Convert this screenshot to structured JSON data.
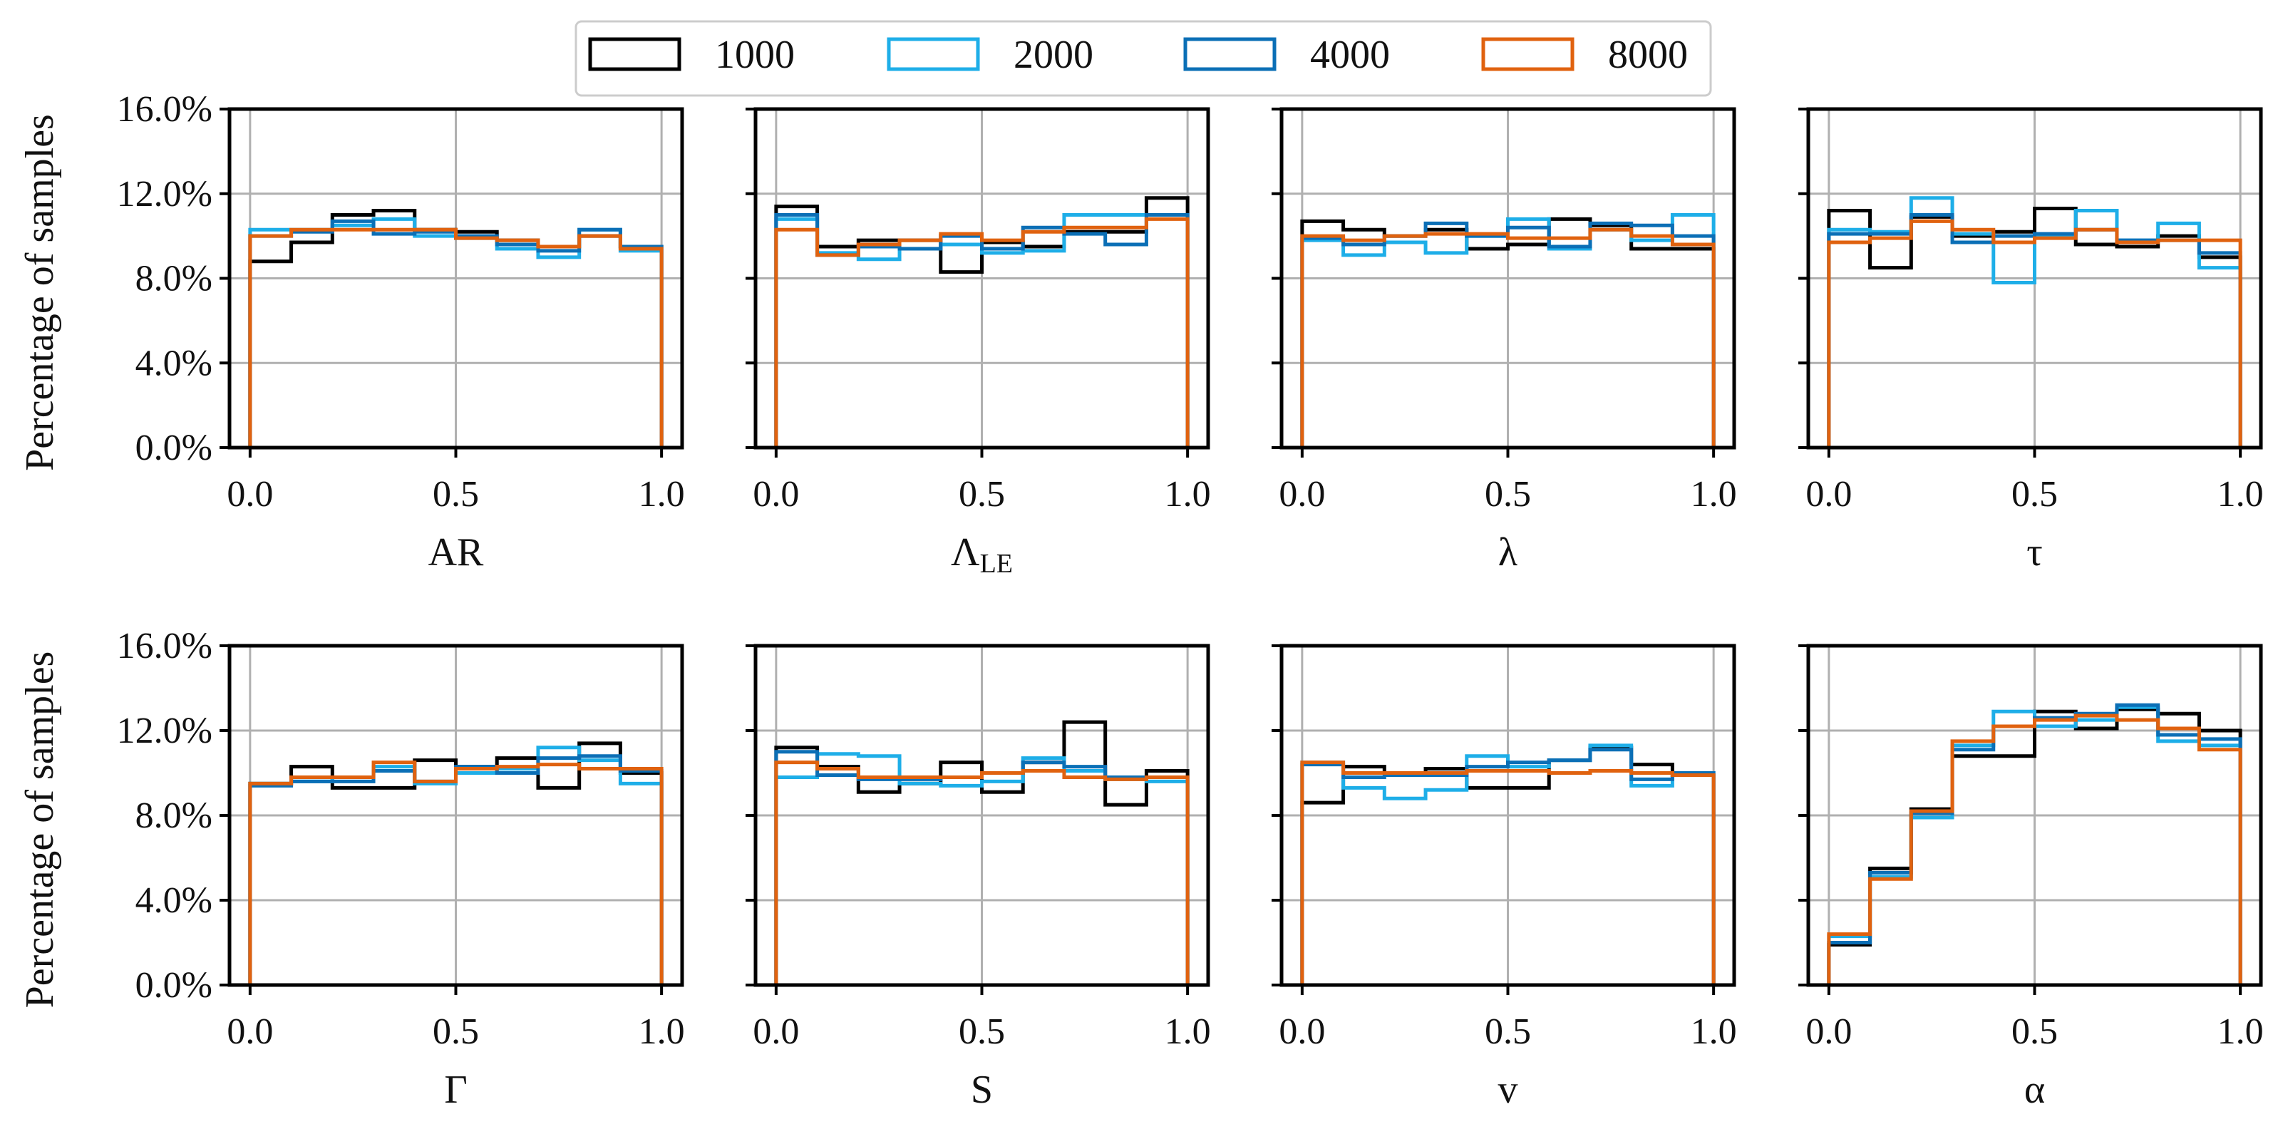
{
  "chart_data": {
    "type": "histogram",
    "legend": {
      "placement": "top-center",
      "entries": [
        {
          "label": "1000",
          "color": "#000000"
        },
        {
          "label": "2000",
          "color": "#1eaee8"
        },
        {
          "label": "4000",
          "color": "#0b6fb6"
        },
        {
          "label": "8000",
          "color": "#e0620f"
        }
      ]
    },
    "ylabel": "Percentage of samples",
    "y_ticks": [
      "0.0%",
      "4.0%",
      "8.0%",
      "12.0%",
      "16.0%"
    ],
    "x_ticks": [
      "0.0",
      "0.5",
      "1.0"
    ],
    "ylim": [
      0,
      16
    ],
    "xlim": [
      -0.05,
      1.05
    ],
    "bin_edges": [
      0.0,
      0.1,
      0.2,
      0.3,
      0.4,
      0.5,
      0.6,
      0.7,
      0.8,
      0.9,
      1.0
    ],
    "grid": true,
    "panels": [
      {
        "xlabel": "AR",
        "sub": "",
        "series": [
          [
            8.8,
            9.7,
            11.0,
            11.2,
            10.3,
            10.2,
            9.8,
            9.5,
            10.0,
            9.5
          ],
          [
            10.3,
            10.3,
            10.5,
            10.8,
            10.0,
            9.9,
            9.4,
            9.0,
            10.3,
            9.3
          ],
          [
            10.0,
            10.2,
            10.7,
            10.1,
            10.2,
            10.0,
            9.6,
            9.3,
            10.3,
            9.5
          ],
          [
            10.0,
            10.3,
            10.3,
            10.3,
            10.3,
            9.9,
            9.8,
            9.5,
            10.0,
            9.4
          ]
        ]
      },
      {
        "xlabel": "Λ",
        "sub": "LE",
        "series": [
          [
            11.4,
            9.5,
            9.8,
            9.8,
            8.3,
            9.7,
            9.5,
            10.2,
            10.2,
            11.8
          ],
          [
            10.8,
            9.2,
            8.9,
            9.4,
            9.6,
            9.2,
            9.3,
            11.0,
            11.0,
            11.0
          ],
          [
            11.0,
            9.1,
            9.5,
            9.4,
            10.0,
            9.4,
            10.4,
            10.1,
            9.6,
            11.0
          ],
          [
            10.3,
            9.1,
            9.6,
            9.8,
            10.1,
            9.8,
            10.2,
            10.4,
            10.4,
            10.8
          ]
        ]
      },
      {
        "xlabel": "λ",
        "sub": "",
        "series": [
          [
            10.7,
            10.3,
            10.0,
            10.3,
            9.4,
            9.6,
            10.8,
            10.5,
            9.4,
            9.4
          ],
          [
            9.8,
            9.1,
            9.7,
            9.2,
            10.0,
            10.8,
            9.4,
            10.3,
            9.8,
            11.0
          ],
          [
            9.9,
            9.6,
            10.0,
            10.6,
            10.0,
            10.4,
            9.5,
            10.6,
            10.5,
            10.0
          ],
          [
            10.0,
            9.8,
            10.0,
            10.1,
            10.1,
            9.9,
            9.9,
            10.3,
            10.0,
            9.6
          ]
        ]
      },
      {
        "xlabel": "τ",
        "sub": "",
        "series": [
          [
            11.2,
            8.5,
            10.9,
            10.0,
            10.2,
            11.3,
            9.6,
            9.5,
            10.0,
            9.0
          ],
          [
            10.3,
            10.2,
            11.8,
            10.1,
            7.8,
            10.0,
            11.2,
            9.8,
            10.6,
            8.5
          ],
          [
            10.1,
            10.1,
            11.0,
            9.7,
            10.0,
            10.1,
            10.3,
            9.8,
            9.8,
            9.2
          ],
          [
            9.7,
            9.9,
            10.7,
            10.3,
            9.7,
            9.9,
            10.3,
            9.7,
            9.8,
            9.8
          ]
        ]
      },
      {
        "xlabel": "Γ",
        "sub": "",
        "series": [
          [
            9.5,
            10.3,
            9.3,
            9.3,
            10.6,
            10.3,
            10.7,
            9.3,
            11.4,
            10.0
          ],
          [
            9.5,
            9.6,
            9.8,
            10.3,
            9.5,
            10.0,
            10.2,
            11.2,
            10.6,
            9.5
          ],
          [
            9.4,
            9.6,
            9.6,
            10.1,
            9.6,
            10.3,
            10.0,
            10.7,
            10.8,
            10.1
          ],
          [
            9.5,
            9.8,
            9.8,
            10.5,
            9.6,
            10.2,
            10.3,
            10.4,
            10.2,
            10.2
          ]
        ]
      },
      {
        "xlabel": "S",
        "sub": "",
        "series": [
          [
            11.2,
            10.3,
            9.1,
            9.5,
            10.5,
            9.1,
            10.5,
            12.4,
            8.5,
            10.1
          ],
          [
            9.8,
            10.9,
            10.8,
            9.5,
            9.4,
            9.6,
            10.7,
            10.1,
            9.7,
            9.6
          ],
          [
            11.0,
            9.9,
            9.7,
            9.7,
            9.8,
            10.0,
            10.5,
            10.3,
            9.8,
            9.8
          ],
          [
            10.5,
            10.2,
            9.8,
            9.8,
            9.8,
            10.0,
            10.1,
            9.8,
            9.7,
            9.8
          ]
        ]
      },
      {
        "xlabel": "v",
        "sub": "",
        "series": [
          [
            8.6,
            10.3,
            10.0,
            10.2,
            9.3,
            9.3,
            10.6,
            11.2,
            10.4,
            9.9
          ],
          [
            10.5,
            9.3,
            8.8,
            9.2,
            10.8,
            10.3,
            10.6,
            11.3,
            9.4,
            10.0
          ],
          [
            10.4,
            9.8,
            9.9,
            9.9,
            10.3,
            10.5,
            10.6,
            11.1,
            9.7,
            10.0
          ],
          [
            10.5,
            10.0,
            10.0,
            10.0,
            10.1,
            10.1,
            10.0,
            10.1,
            10.0,
            9.9
          ]
        ]
      },
      {
        "xlabel": "α",
        "sub": "",
        "series": [
          [
            1.9,
            5.5,
            8.3,
            10.8,
            10.8,
            12.9,
            12.1,
            13.0,
            12.8,
            12.0
          ],
          [
            2.3,
            5.1,
            7.9,
            11.3,
            12.9,
            12.2,
            12.5,
            13.1,
            11.5,
            11.3
          ],
          [
            2.0,
            5.3,
            8.1,
            11.1,
            12.2,
            12.6,
            12.8,
            13.2,
            11.8,
            11.6
          ],
          [
            2.4,
            5.0,
            8.2,
            11.5,
            12.2,
            12.5,
            12.7,
            12.5,
            12.1,
            11.1
          ]
        ]
      }
    ]
  }
}
